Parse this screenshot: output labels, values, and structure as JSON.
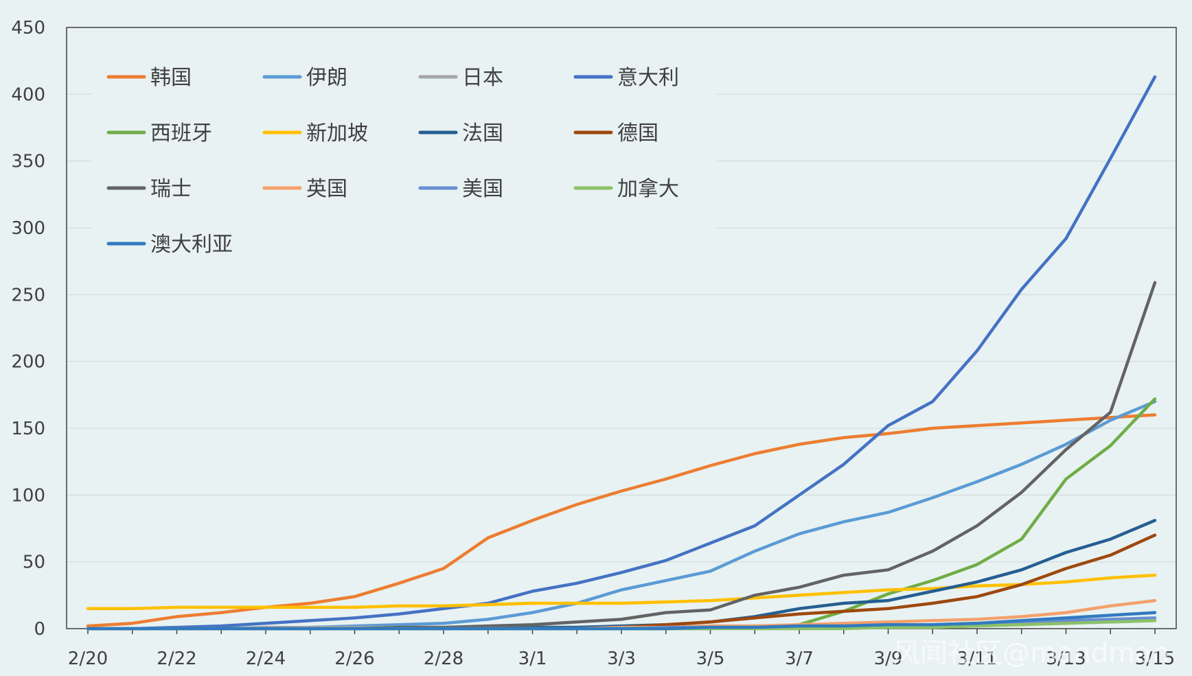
{
  "chart_data": {
    "type": "line",
    "title": "",
    "xlabel": "",
    "ylabel": "",
    "ylim": [
      0,
      450
    ],
    "y_ticks": [
      0,
      50,
      100,
      150,
      200,
      250,
      300,
      350,
      400,
      450
    ],
    "grid": "horizontal",
    "legend_position": "top-left",
    "x": [
      "2/20",
      "2/21",
      "2/22",
      "2/23",
      "2/24",
      "2/25",
      "2/26",
      "2/27",
      "2/28",
      "2/29",
      "3/1",
      "3/2",
      "3/3",
      "3/4",
      "3/5",
      "3/6",
      "3/7",
      "3/8",
      "3/9",
      "3/10",
      "3/11",
      "3/12",
      "3/13",
      "3/14",
      "3/15"
    ],
    "x_tick_labels": [
      "2/20",
      "2/22",
      "2/24",
      "2/26",
      "2/28",
      "3/1",
      "3/3",
      "3/5",
      "3/7",
      "3/9",
      "3/11",
      "3/13",
      "3/15"
    ],
    "series": [
      {
        "name": "韩国",
        "color": "#ed7d31",
        "values": [
          2,
          4,
          9,
          12,
          16,
          19,
          24,
          34,
          45,
          68,
          81,
          93,
          103,
          112,
          122,
          131,
          138,
          143,
          146,
          150,
          152,
          154,
          156,
          158,
          160
        ]
      },
      {
        "name": "伊朗",
        "color": "#5b9bd5",
        "values": [
          0,
          0,
          0,
          0,
          0,
          1,
          2,
          3,
          4,
          7,
          12,
          19,
          29,
          36,
          43,
          58,
          71,
          80,
          87,
          98,
          110,
          123,
          138,
          156,
          170
        ]
      },
      {
        "name": "日本",
        "color": "#a5a5a5",
        "values": [
          0,
          0,
          0,
          0,
          1,
          1,
          1,
          1,
          1,
          1,
          1,
          1,
          1,
          1,
          2,
          2,
          2,
          3,
          3,
          3,
          4,
          4,
          5,
          5,
          6
        ]
      },
      {
        "name": "意大利",
        "color": "#4472c4",
        "values": [
          0,
          0,
          1,
          2,
          4,
          6,
          8,
          11,
          15,
          19,
          28,
          34,
          42,
          51,
          64,
          77,
          100,
          123,
          152,
          170,
          208,
          254,
          292,
          352,
          413
        ]
      },
      {
        "name": "西班牙",
        "color": "#70ad47",
        "values": [
          0,
          0,
          0,
          0,
          0,
          0,
          0,
          0,
          0,
          0,
          0,
          0,
          0,
          0,
          0,
          1,
          3,
          13,
          26,
          36,
          48,
          67,
          112,
          137,
          172
        ]
      },
      {
        "name": "新加坡",
        "color": "#ffc000",
        "values": [
          15,
          15,
          16,
          16,
          16,
          16,
          16,
          17,
          17,
          18,
          19,
          19,
          19,
          20,
          21,
          23,
          25,
          27,
          29,
          30,
          32,
          33,
          35,
          38,
          40
        ]
      },
      {
        "name": "法国",
        "color": "#255e91",
        "values": [
          0,
          0,
          0,
          0,
          0,
          0,
          0,
          0,
          0,
          0,
          1,
          1,
          2,
          3,
          5,
          9,
          15,
          19,
          21,
          28,
          35,
          44,
          57,
          67,
          81
        ]
      },
      {
        "name": "德国",
        "color": "#9e480e",
        "values": [
          0,
          0,
          0,
          0,
          0,
          0,
          0,
          0,
          0,
          0,
          0,
          0,
          1,
          3,
          5,
          8,
          11,
          13,
          15,
          19,
          24,
          33,
          45,
          55,
          70
        ]
      },
      {
        "name": "瑞士",
        "color": "#636363",
        "values": [
          0,
          0,
          0,
          0,
          0,
          0,
          0,
          1,
          1,
          2,
          3,
          5,
          7,
          12,
          14,
          25,
          31,
          40,
          44,
          58,
          77,
          102,
          134,
          162,
          259
        ]
      },
      {
        "name": "英国",
        "color": "#f4a16c",
        "values": [
          0,
          0,
          0,
          0,
          0,
          0,
          0,
          0,
          0,
          0,
          0,
          0,
          1,
          1,
          2,
          2,
          3,
          4,
          5,
          6,
          7,
          9,
          12,
          17,
          21
        ]
      },
      {
        "name": "美国",
        "color": "#698ed0",
        "values": [
          0,
          0,
          0,
          0,
          0,
          0,
          0,
          0,
          0,
          0,
          0,
          0,
          0,
          1,
          1,
          1,
          2,
          2,
          3,
          3,
          4,
          5,
          6,
          7,
          8
        ]
      },
      {
        "name": "加拿大",
        "color": "#8cc168",
        "values": [
          0,
          0,
          0,
          0,
          0,
          0,
          0,
          0,
          0,
          0,
          0,
          0,
          0,
          0,
          0,
          0,
          0,
          0,
          1,
          1,
          2,
          3,
          4,
          5,
          6
        ]
      },
      {
        "name": "澳大利亚",
        "color": "#327ac0",
        "values": [
          0,
          0,
          0,
          0,
          0,
          0,
          0,
          0,
          0,
          0,
          0,
          0,
          0,
          0,
          1,
          1,
          2,
          2,
          3,
          3,
          4,
          6,
          8,
          10,
          12
        ]
      }
    ]
  },
  "watermark": "风闻社区@mandman"
}
